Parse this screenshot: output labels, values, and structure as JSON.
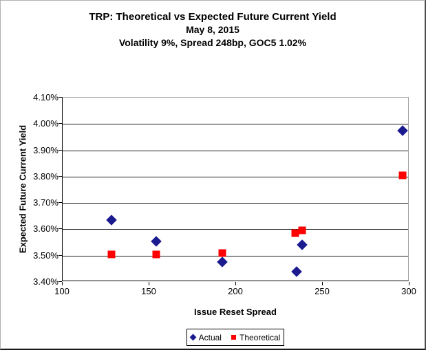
{
  "accent_colors": {
    "actual_marker": "#1b1b8f",
    "theoretical_marker": "#fe0000",
    "gridline": "#1a1a1a",
    "plot_border_gray": "#a6a6a6"
  },
  "chart_data": {
    "type": "scatter",
    "title": "TRP: Theoretical vs Expected Future Current Yield",
    "subtitle": "May 8, 2015",
    "subtitle2": "Volatility 9%, Spread 248bp, GOC5 1.02%",
    "xlabel": "Issue Reset Spread",
    "ylabel": "Expected Future Current Yield",
    "xlim": [
      100,
      300
    ],
    "ylim": [
      3.4,
      4.1
    ],
    "x_ticks": [
      100,
      150,
      200,
      250,
      300
    ],
    "x_tick_labels": [
      "100",
      "150",
      "200",
      "250",
      "300"
    ],
    "y_ticks": [
      3.4,
      3.5,
      3.6,
      3.7,
      3.8,
      3.9,
      4.0,
      4.1
    ],
    "y_tick_labels": [
      "3.40%",
      "3.50%",
      "3.60%",
      "3.70%",
      "3.80%",
      "3.90%",
      "4.00%",
      "4.10%"
    ],
    "grid": "horizontal-major",
    "legend_position": "bottom",
    "series": [
      {
        "name": "Actual",
        "marker": "diamond",
        "color": "#1b1b8f",
        "points": [
          {
            "x": 128,
            "y": 3.635
          },
          {
            "x": 154,
            "y": 3.555
          },
          {
            "x": 192,
            "y": 3.475
          },
          {
            "x": 235,
            "y": 3.44
          },
          {
            "x": 238,
            "y": 3.54
          },
          {
            "x": 296,
            "y": 3.975
          }
        ]
      },
      {
        "name": "Theoretical",
        "marker": "square",
        "color": "#fe0000",
        "points": [
          {
            "x": 128,
            "y": 3.505
          },
          {
            "x": 154,
            "y": 3.505
          },
          {
            "x": 192,
            "y": 3.51
          },
          {
            "x": 234,
            "y": 3.585
          },
          {
            "x": 238,
            "y": 3.595
          },
          {
            "x": 296,
            "y": 3.805
          }
        ]
      }
    ]
  }
}
